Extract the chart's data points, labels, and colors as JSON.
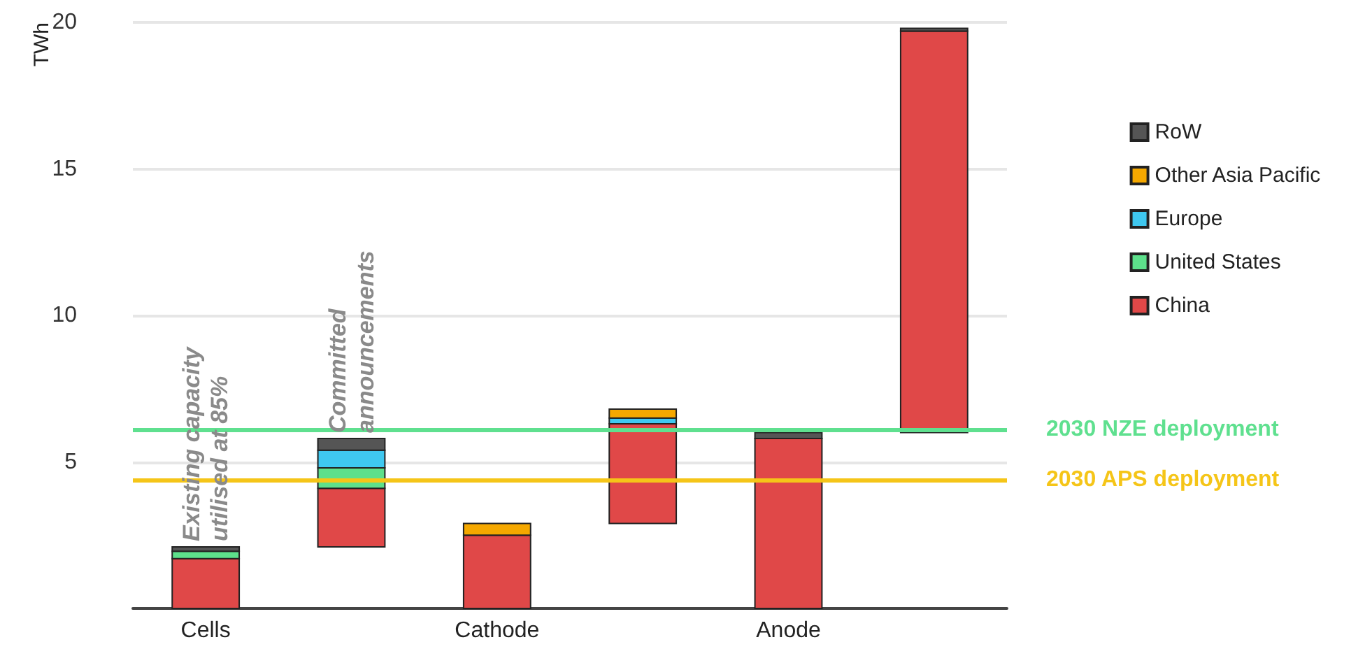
{
  "chart_data": {
    "type": "bar",
    "stacked": true,
    "ylabel": "TWh",
    "categories": [
      "Cells",
      null,
      "Cathode",
      null,
      "Anode",
      null
    ],
    "series": [
      {
        "name": "China",
        "color": "#e04848",
        "values": [
          1.7,
          2.0,
          2.5,
          3.4,
          5.8,
          13.7
        ],
        "base": [
          0,
          2.1,
          0,
          2.9,
          0,
          6.0
        ]
      },
      {
        "name": "United States",
        "color": "#5de08b",
        "values": [
          0.25,
          0.7,
          null,
          null,
          null,
          null
        ]
      },
      {
        "name": "Europe",
        "color": "#3fc8f0",
        "values": [
          null,
          0.6,
          null,
          0.2,
          null,
          null
        ]
      },
      {
        "name": "Other Asia Pacific",
        "color": "#f5a800",
        "values": [
          null,
          null,
          0.4,
          0.3,
          null,
          null
        ]
      },
      {
        "name": "RoW",
        "color": "#555555",
        "values": [
          0.15,
          0.4,
          null,
          null,
          0.2,
          0.1
        ]
      }
    ],
    "ylim": [
      0,
      20
    ],
    "yticks": [
      5,
      10,
      15,
      20
    ],
    "grid": "y",
    "legend": "right",
    "ref_lines": [
      {
        "axis": "y",
        "value": 6.1,
        "label": "2030 NZE deployment",
        "color": "#5fe08f"
      },
      {
        "axis": "y",
        "value": 4.4,
        "label": "2030 APS deployment",
        "color": "#f5c518"
      }
    ],
    "annotations": [
      "Existing capacity\nutilised at 85%",
      "Committed\nannouncements"
    ]
  }
}
